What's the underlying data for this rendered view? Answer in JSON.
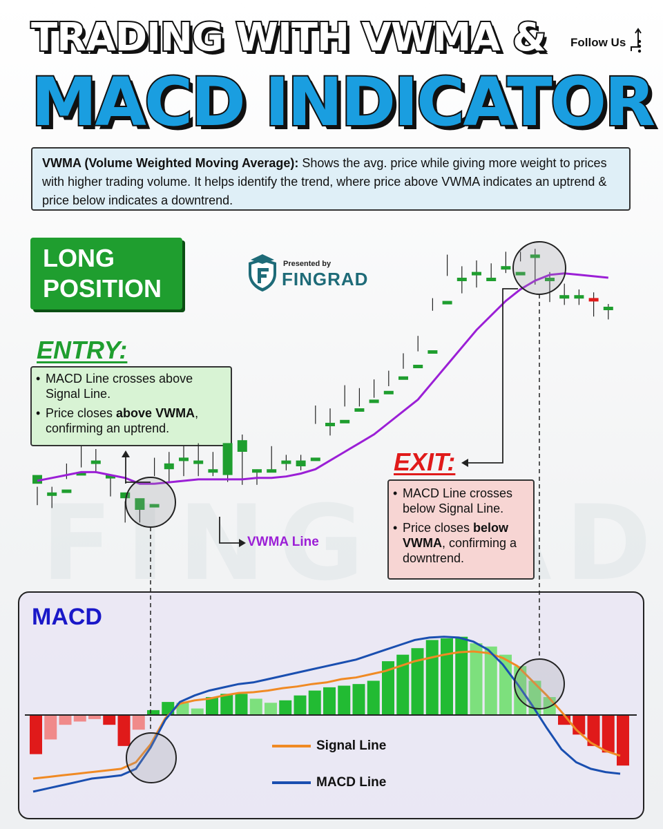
{
  "header": {
    "title_line1": "TRADING WITH VWMA &",
    "title_line2": "MACD INDICATOR",
    "follow": "Follow Us"
  },
  "definition": {
    "term": "VWMA (Volume Weighted Moving Average):",
    "text": " Shows the avg. price while giving more weight to prices with higher trading volume. It helps identify the trend, where price above VWMA indicates an uptrend & price below indicates a downtrend."
  },
  "position": {
    "line1": "LONG",
    "line2": "POSITION"
  },
  "brand": {
    "presented": "Presented by",
    "name": "FINGRAD",
    "watermark": "FINGRAD"
  },
  "entry": {
    "heading": "ENTRY:",
    "b1": "MACD Line crosses above Signal Line.",
    "b2_pre": "Price closes ",
    "b2_bold": "above VWMA",
    "b2_post": ", confirming an uptrend."
  },
  "exit": {
    "heading": "EXIT:",
    "b1": "MACD Line crosses below Signal Line.",
    "b2_pre": "Price closes ",
    "b2_bold": "below VWMA",
    "b2_post": ", confirming a downtrend."
  },
  "labels": {
    "vwma": "VWMA Line",
    "macd": "MACD",
    "signal_legend": "Signal Line",
    "macd_legend": "MACD Line"
  },
  "colors": {
    "bull": "#1f9e2f",
    "bear": "#e01a1a",
    "vwma": "#9b1fd6",
    "macd": "#1a4fb0",
    "signal": "#f08a24",
    "hist_pos_strong": "#22bb33",
    "hist_pos_light": "#7de07d",
    "hist_neg_strong": "#e01a1a",
    "hist_neg_light": "#f08a8a"
  },
  "chart_data": [
    {
      "type": "candlestick",
      "title": "",
      "xlabel": "",
      "ylabel": "",
      "ylim": [
        0,
        100
      ],
      "ohlc": [
        [
          19,
          22,
          14,
          17
        ],
        [
          16,
          16,
          13,
          17
        ],
        [
          17,
          17,
          23,
          25
        ],
        [
          23,
          23,
          27,
          31
        ],
        [
          26,
          27,
          25,
          30
        ],
        [
          22,
          22,
          17,
          21
        ],
        [
          14,
          16,
          8,
          12
        ],
        [
          10,
          14,
          8,
          12
        ],
        [
          12,
          12,
          24,
          27
        ],
        [
          24,
          26,
          22,
          29
        ],
        [
          27,
          28,
          24,
          31
        ],
        [
          26,
          27,
          24,
          32
        ],
        [
          24,
          24,
          24,
          29
        ],
        [
          22,
          33,
          22,
          32
        ],
        [
          30,
          34,
          21,
          35
        ],
        [
          23,
          24,
          21,
          23
        ],
        [
          24,
          24,
          26,
          31
        ],
        [
          26,
          27,
          26,
          28
        ],
        [
          25,
          27,
          26,
          28
        ],
        [
          28,
          28,
          42,
          45
        ],
        [
          39,
          40,
          38,
          44
        ],
        [
          41,
          41,
          48,
          52
        ],
        [
          45,
          45,
          48,
          51
        ],
        [
          48,
          48,
          51,
          54
        ],
        [
          51,
          51,
          55,
          57
        ],
        [
          56,
          56,
          61,
          63
        ],
        [
          60,
          60,
          67,
          69
        ],
        [
          65,
          65,
          81,
          82
        ],
        [
          82,
          82,
          93,
          97
        ],
        [
          90,
          90,
          87,
          93
        ],
        [
          92,
          92,
          89,
          95
        ],
        [
          89,
          90,
          92,
          94
        ],
        [
          94,
          94,
          94,
          98
        ],
        [
          92,
          92,
          98,
          98
        ],
        [
          98,
          98,
          90,
          99
        ],
        [
          90,
          90,
          84,
          91
        ],
        [
          83,
          84,
          83,
          87
        ],
        [
          83,
          84,
          83,
          85
        ],
        [
          83,
          82,
          79,
          84
        ],
        [
          79,
          80,
          78,
          80
        ]
      ],
      "vwma": [
        20,
        21,
        22,
        23,
        23,
        22,
        21,
        19,
        19,
        19.5,
        20,
        20.5,
        20.5,
        20.5,
        20.5,
        21,
        21,
        21.5,
        22.5,
        24,
        27,
        30,
        33,
        36,
        40,
        44,
        48,
        54,
        60,
        66,
        72,
        77,
        82,
        86,
        89,
        91,
        91.5,
        91,
        90.5,
        90
      ]
    },
    {
      "type": "bar",
      "title": "MACD",
      "xlabel": "",
      "ylabel": "",
      "ylim": [
        -1,
        1
      ],
      "series": [
        {
          "name": "Histogram",
          "values": [
            -0.48,
            -0.3,
            -0.12,
            -0.08,
            -0.05,
            -0.12,
            -0.38,
            -0.18,
            0.06,
            0.16,
            0.15,
            0.08,
            0.22,
            0.26,
            0.26,
            0.2,
            0.15,
            0.18,
            0.24,
            0.3,
            0.34,
            0.36,
            0.38,
            0.42,
            0.66,
            0.74,
            0.82,
            0.92,
            0.94,
            0.96,
            0.88,
            0.84,
            0.74,
            0.6,
            0.42,
            0.22,
            -0.12,
            -0.24,
            -0.38,
            -0.46,
            -0.62
          ]
        },
        {
          "name": "Signal Line",
          "values": [
            -0.78,
            -0.76,
            -0.74,
            -0.72,
            -0.7,
            -0.68,
            -0.66,
            -0.58,
            -0.36,
            -0.04,
            0.14,
            0.18,
            0.2,
            0.24,
            0.27,
            0.28,
            0.3,
            0.33,
            0.35,
            0.38,
            0.4,
            0.44,
            0.46,
            0.5,
            0.54,
            0.6,
            0.66,
            0.7,
            0.74,
            0.77,
            0.78,
            0.76,
            0.7,
            0.6,
            0.42,
            0.24,
            0.04,
            -0.18,
            -0.34,
            -0.44,
            -0.5
          ]
        },
        {
          "name": "MACD Line",
          "values": [
            -0.94,
            -0.9,
            -0.86,
            -0.82,
            -0.78,
            -0.76,
            -0.74,
            -0.66,
            -0.4,
            -0.06,
            0.16,
            0.24,
            0.3,
            0.34,
            0.38,
            0.4,
            0.44,
            0.48,
            0.52,
            0.56,
            0.6,
            0.64,
            0.68,
            0.74,
            0.8,
            0.86,
            0.92,
            0.95,
            0.96,
            0.95,
            0.9,
            0.8,
            0.62,
            0.38,
            0.12,
            -0.16,
            -0.42,
            -0.58,
            -0.66,
            -0.7,
            -0.72
          ]
        }
      ]
    }
  ]
}
